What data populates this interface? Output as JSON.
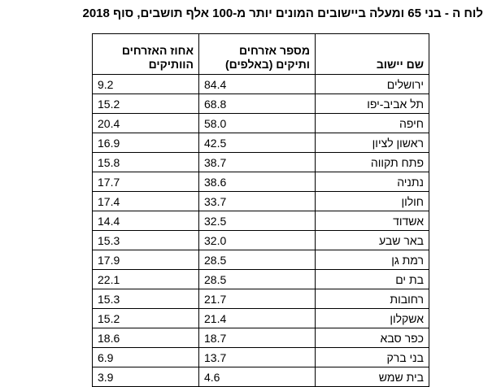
{
  "title": "לוח ה - בני 65 ומעלה ביישובים המונים יותר מ-100 אלף תושבים, סוף 2018",
  "headers": {
    "percent": "אחוז האזרחים הוותיקים",
    "count": "מספר אזרחים ותיקים (באלפים)",
    "name": "שם יישוב"
  },
  "rows": [
    {
      "name": "ירושלים",
      "count": "84.4",
      "percent": "9.2"
    },
    {
      "name": "תל אביב-יפו",
      "count": "68.8",
      "percent": "15.2"
    },
    {
      "name": "חיפה",
      "count": "58.0",
      "percent": "20.4"
    },
    {
      "name": "ראשון לציון",
      "count": "42.5",
      "percent": "16.9"
    },
    {
      "name": "פתח תקווה",
      "count": "38.7",
      "percent": "15.8"
    },
    {
      "name": "נתניה",
      "count": "38.6",
      "percent": "17.7"
    },
    {
      "name": "חולון",
      "count": "33.7",
      "percent": "17.4"
    },
    {
      "name": "אשדוד",
      "count": "32.5",
      "percent": "14.4"
    },
    {
      "name": "באר שבע",
      "count": "32.0",
      "percent": "15.3"
    },
    {
      "name": "רמת גן",
      "count": "28.5",
      "percent": "17.9"
    },
    {
      "name": "בת ים",
      "count": "28.5",
      "percent": "22.1"
    },
    {
      "name": "רחובות",
      "count": "21.7",
      "percent": "15.3"
    },
    {
      "name": "אשקלון",
      "count": "21.4",
      "percent": "15.2"
    },
    {
      "name": "כפר סבא",
      "count": "18.7",
      "percent": "18.6"
    },
    {
      "name": "בני ברק",
      "count": "13.7",
      "percent": "6.9"
    },
    {
      "name": "בית שמש",
      "count": "4.6",
      "percent": "3.9"
    }
  ]
}
